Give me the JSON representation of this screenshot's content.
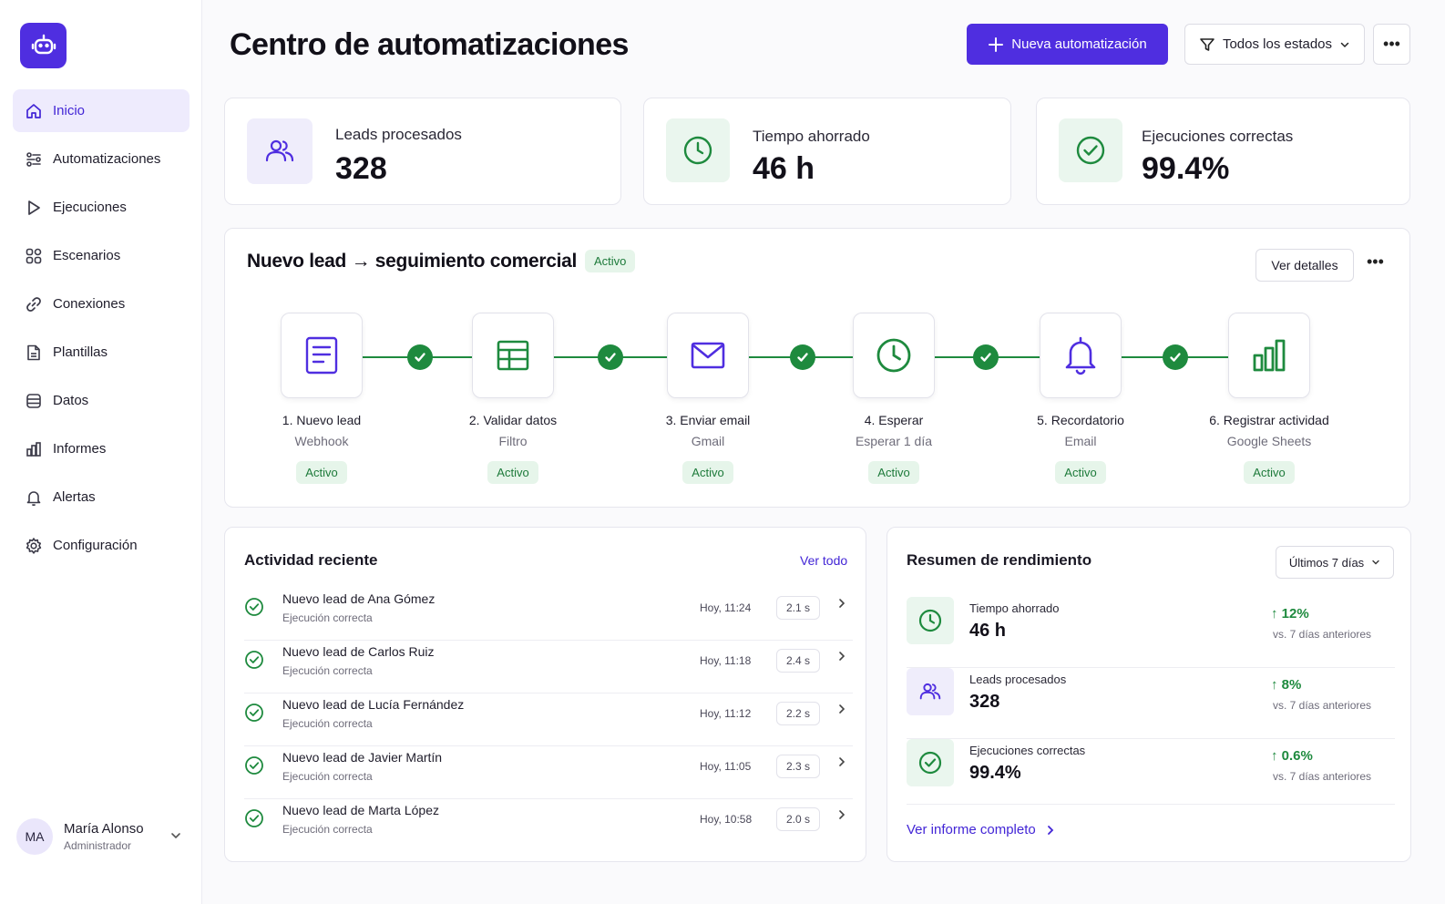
{
  "sidebar": {
    "logo_icon": "robot-icon",
    "items": [
      {
        "label": "Inicio",
        "icon": "home-icon"
      },
      {
        "label": "Automatizaciones",
        "icon": "automation-icon"
      },
      {
        "label": "Ejecuciones",
        "icon": "play-icon"
      },
      {
        "label": "Escenarios",
        "icon": "grid-icon"
      },
      {
        "label": "Conexiones",
        "icon": "link-icon"
      },
      {
        "label": "Plantillas",
        "icon": "document-icon"
      },
      {
        "label": "Datos",
        "icon": "database-icon"
      },
      {
        "label": "Informes",
        "icon": "bar-chart-icon"
      },
      {
        "label": "Alertas",
        "icon": "bell-icon"
      },
      {
        "label": "Configuración",
        "icon": "gear-icon"
      }
    ],
    "active_item": "Inicio",
    "user": {
      "initials": "MA",
      "name": "María Alonso",
      "role": "Administrador"
    }
  },
  "header": {
    "title": "Centro de automatizaciones",
    "new_button": "Nueva automatización",
    "filter_label": "Todos los estados"
  },
  "stats": [
    {
      "label": "Leads procesados",
      "value": "328",
      "icon": "users-icon"
    },
    {
      "label": "Tiempo ahorrado",
      "value": "46 h",
      "icon": "clock-icon"
    },
    {
      "label": "Ejecuciones correctas",
      "value": "99.4%",
      "icon": "check-circle-icon"
    }
  ],
  "workflow": {
    "title": "Nuevo lead → seguimiento comercial",
    "status": "Activo",
    "details_button": "Ver detalles",
    "steps": [
      {
        "name": "1. Nuevo lead",
        "sub": "Webhook",
        "status": "Activo",
        "icon": "form-icon"
      },
      {
        "name": "2. Validar datos",
        "sub": "Filtro",
        "status": "Activo",
        "icon": "table-icon"
      },
      {
        "name": "3. Enviar email",
        "sub": "Gmail",
        "status": "Activo",
        "icon": "mail-icon"
      },
      {
        "name": "4. Esperar",
        "sub": "Esperar 1 día",
        "status": "Activo",
        "icon": "clock-icon"
      },
      {
        "name": "5. Recordatorio",
        "sub": "Email",
        "status": "Activo",
        "icon": "bell-icon"
      },
      {
        "name": "6. Registrar actividad",
        "sub": "Google Sheets",
        "status": "Activo",
        "icon": "bar-chart-icon"
      }
    ]
  },
  "activity": {
    "title": "Actividad reciente",
    "view_all": "Ver todo",
    "items": [
      {
        "title": "Nuevo lead de Ana Gómez",
        "sub": "Ejecución correcta",
        "time": "Hoy, 11:24",
        "duration": "2.1 s"
      },
      {
        "title": "Nuevo lead de Carlos Ruiz",
        "sub": "Ejecución correcta",
        "time": "Hoy, 11:18",
        "duration": "2.4 s"
      },
      {
        "title": "Nuevo lead de Lucía Fernández",
        "sub": "Ejecución correcta",
        "time": "Hoy, 11:12",
        "duration": "2.2 s"
      },
      {
        "title": "Nuevo lead de Javier Martín",
        "sub": "Ejecución correcta",
        "time": "Hoy, 11:05",
        "duration": "2.3 s"
      },
      {
        "title": "Nuevo lead de Marta López",
        "sub": "Ejecución correcta",
        "time": "Hoy, 10:58",
        "duration": "2.0 s"
      }
    ]
  },
  "performance": {
    "title": "Resumen de rendimiento",
    "period": "Últimos 7 días",
    "rows": [
      {
        "label": "Tiempo ahorrado",
        "value": "46 h",
        "delta": "↑ 12%",
        "compare": "vs. 7 días anteriores",
        "icon": "clock-icon"
      },
      {
        "label": "Leads procesados",
        "value": "328",
        "delta": "↑ 8%",
        "compare": "vs. 7 días anteriores",
        "icon": "users-icon"
      },
      {
        "label": "Ejecuciones correctas",
        "value": "99.4%",
        "delta": "↑ 0.6%",
        "compare": "vs. 7 días anteriores",
        "icon": "check-circle-icon"
      }
    ],
    "report_link": "Ver informe completo"
  },
  "colors": {
    "accent": "#4f2ee0",
    "success": "#1e8a3e",
    "success_bg": "#e6f5ea",
    "accent_bg": "#efedfb"
  }
}
